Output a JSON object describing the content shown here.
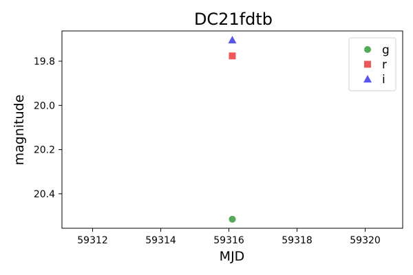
{
  "chart_data": {
    "type": "scatter",
    "title": "DC21fdtb",
    "xlabel": "MJD",
    "ylabel": "magnitude",
    "xlim": [
      59311.1,
      59321.1
    ],
    "ylim": [
      20.556,
      19.663
    ],
    "y_inverted": true,
    "xticks": [
      59312,
      59314,
      59316,
      59318,
      59320
    ],
    "xtick_labels": [
      "59312",
      "59314",
      "59316",
      "59318",
      "59320"
    ],
    "yticks": [
      19.8,
      20.0,
      20.2,
      20.4
    ],
    "ytick_labels": [
      "19.8",
      "20.0",
      "20.2",
      "20.4"
    ],
    "grid": false,
    "legend_position": "top-right",
    "series": [
      {
        "name": "g",
        "marker": "circle",
        "color": "#4ca64c",
        "points": [
          {
            "x": 59316.1,
            "y": 20.515
          }
        ]
      },
      {
        "name": "r",
        "marker": "square",
        "color": "#f24d4d",
        "points": [
          {
            "x": 59316.1,
            "y": 19.776
          }
        ]
      },
      {
        "name": "i",
        "marker": "triangle",
        "color": "#4d4df2",
        "points": [
          {
            "x": 59316.1,
            "y": 19.704
          }
        ]
      }
    ]
  }
}
